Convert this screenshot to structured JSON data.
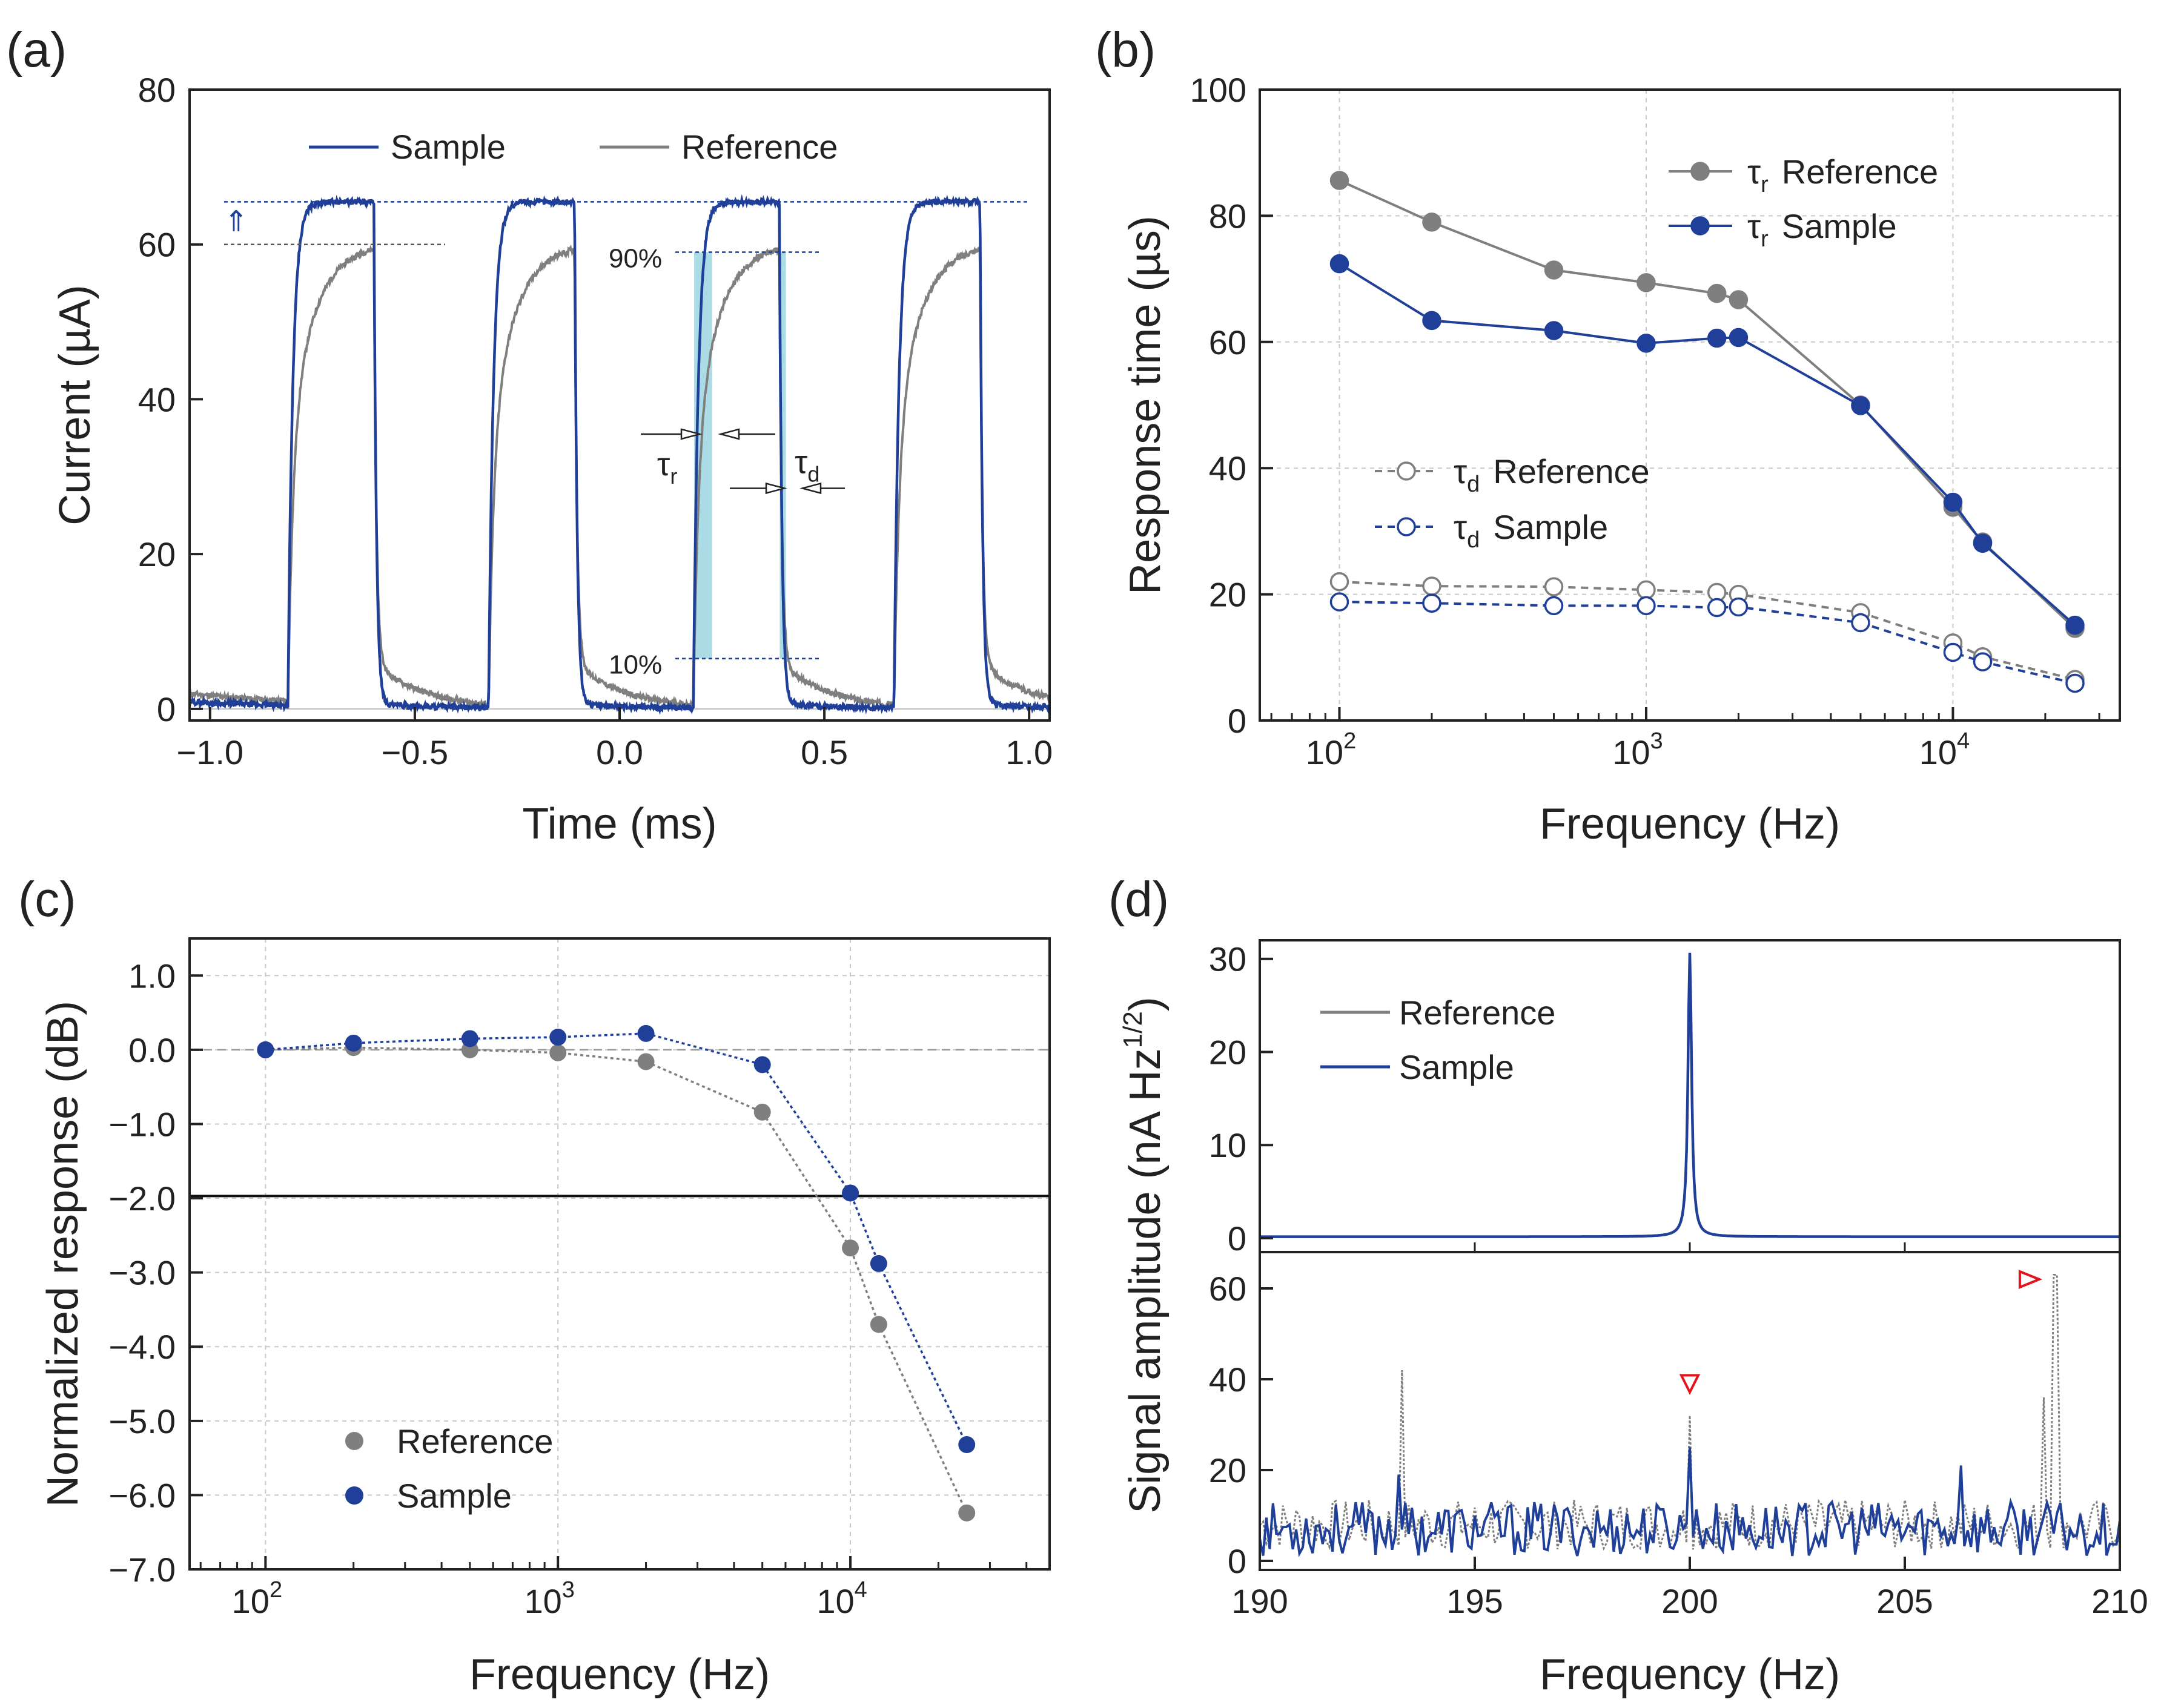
{
  "chart_data": [
    {
      "panel": "(a)",
      "type": "line",
      "xlabel": "Time (ms)",
      "ylabel_main": "Current (",
      "ylabel_mu": "µ",
      "ylabel_tail": "A)",
      "xlim": [
        -1.05,
        1.05
      ],
      "ylim": [
        -1.5,
        80
      ],
      "xticks": [
        -1.0,
        -0.5,
        0.0,
        0.5,
        1.0
      ],
      "xtick_labels": [
        "−1.0",
        "−0.5",
        "0.0",
        "0.5",
        "1.0"
      ],
      "yticks": [
        0,
        20,
        40,
        60,
        80
      ],
      "ytick_labels": [
        "0",
        "20",
        "40",
        "60",
        "80"
      ],
      "legend_position": "top",
      "series": [
        {
          "name": "Sample",
          "color": "#1f3f99",
          "high": 65.5,
          "low": 0,
          "tau_rise_ms": 0.012,
          "tau_fall_ms": 0.006
        },
        {
          "name": "Reference",
          "color": "#7f7f7f",
          "high": 60.2,
          "low": 0,
          "tau_rise_ms": 0.03,
          "tau_fall_ms": 0.025
        }
      ],
      "pulse_on_ms": [
        -0.81,
        -0.32,
        0.18,
        0.67
      ],
      "pulse_off_ms": [
        -0.6,
        -0.11,
        0.39,
        0.88
      ],
      "annotations": {
        "p90": "90%",
        "p10": "10%",
        "tau_r": "τ",
        "tau_r_sub": "r",
        "tau_d": "τ",
        "tau_d_sub": "d",
        "up_arrow": "⇑",
        "sample_level": 65.5,
        "reference_level": 60,
        "ninety_level": 59,
        "ten_level": 6.5
      }
    },
    {
      "panel": "(b)",
      "type": "line",
      "xlabel": "Frequency (Hz)",
      "ylabel": "Response time (µs)",
      "xscale": "log",
      "xlim": [
        55,
        35000
      ],
      "ylim": [
        0,
        100
      ],
      "yticks": [
        0,
        20,
        40,
        60,
        80,
        100
      ],
      "ytick_labels": [
        "0",
        "20",
        "40",
        "60",
        "80",
        "100"
      ],
      "xticks": [
        100,
        1000,
        10000
      ],
      "xtick_base": "10",
      "xtick_exp": [
        "2",
        "3",
        "4"
      ],
      "legend_position": "top-right and middle-left",
      "x": [
        100,
        200,
        500,
        1000,
        1700,
        2000,
        5000,
        10000,
        12500,
        25000
      ],
      "series": [
        {
          "name": "Reference",
          "symbol": "τ",
          "sub": "r",
          "color": "#7f7f7f",
          "marker": "filled",
          "style": "solid",
          "values": [
            85.6,
            79.0,
            71.4,
            69.4,
            67.7,
            66.7,
            50.0,
            33.8,
            28.3,
            14.6
          ]
        },
        {
          "name": "Sample",
          "symbol": "τ",
          "sub": "r",
          "color": "#1f3f99",
          "marker": "filled",
          "style": "solid",
          "values": [
            72.4,
            63.4,
            61.8,
            59.8,
            60.6,
            60.7,
            49.9,
            34.6,
            28.1,
            15.1
          ]
        },
        {
          "name": "Reference",
          "symbol": "τ",
          "sub": "d",
          "color": "#7f7f7f",
          "marker": "open",
          "style": "dashed",
          "values": [
            22.0,
            21.3,
            21.2,
            20.7,
            20.3,
            20.0,
            17.1,
            12.3,
            10.1,
            6.5
          ]
        },
        {
          "name": "Sample",
          "symbol": "τ",
          "sub": "d",
          "color": "#1f3f99",
          "marker": "open",
          "style": "dashed",
          "values": [
            18.8,
            18.6,
            18.2,
            18.2,
            17.9,
            18.0,
            15.5,
            10.8,
            9.3,
            5.9
          ]
        }
      ]
    },
    {
      "panel": "(c)",
      "type": "line",
      "xlabel": "Frequency (Hz)",
      "ylabel": "Normalized response (dB)",
      "xscale": "log",
      "xlim": [
        55,
        48000
      ],
      "ylim": [
        -7.0,
        1.5
      ],
      "yticks": [
        1.0,
        0.0,
        -1.0,
        -2.0,
        -3.0,
        -4.0,
        -5.0,
        -6.0,
        -7.0
      ],
      "ytick_labels": [
        "1.0",
        "0.0",
        "−1.0",
        "−2.0",
        "−3.0",
        "−4.0",
        "−5.0",
        "−6.0",
        "−7.0"
      ],
      "xticks": [
        100,
        1000,
        10000
      ],
      "xtick_base": "10",
      "xtick_exp": [
        "2",
        "3",
        "4"
      ],
      "threshold_db": -1.97,
      "legend_position": "bottom-left",
      "x": [
        100,
        200,
        500,
        1000,
        2000,
        5000,
        10000,
        12500,
        25000
      ],
      "series": [
        {
          "name": "Reference",
          "color": "#7f7f7f",
          "values": [
            0.0,
            0.03,
            0.0,
            -0.04,
            -0.16,
            -0.84,
            -2.67,
            -3.7,
            -6.24
          ]
        },
        {
          "name": "Sample",
          "color": "#1f3f99",
          "values": [
            0.0,
            0.09,
            0.15,
            0.17,
            0.22,
            -0.2,
            -1.93,
            -2.88,
            -5.32
          ]
        }
      ]
    },
    {
      "panel": "(d)",
      "type": "line",
      "xlabel": "Frequency (Hz)",
      "ylabel_main": "Signal amplitude (nA Hz",
      "ylabel_sup": "1/2",
      "ylabel_tail": ")",
      "xlim": [
        190,
        210
      ],
      "xticks": [
        190,
        195,
        200,
        205,
        210
      ],
      "xtick_labels": [
        "190",
        "195",
        "200",
        "205",
        "210"
      ],
      "top_ylim": [
        -1.5,
        32
      ],
      "top_yticks": [
        0,
        10,
        20,
        30
      ],
      "top_ytick_labels": [
        "0",
        "10",
        "20",
        "30"
      ],
      "bottom_ylim": [
        -2,
        68
      ],
      "bottom_yticks": [
        0,
        20,
        40,
        60
      ],
      "bottom_ytick_labels": [
        "0",
        "20",
        "40",
        "60"
      ],
      "legend_position": "top-left",
      "series": [
        {
          "name": "Reference",
          "color": "#7f7f7f",
          "peak_hz": 200,
          "peak_top": 30.0
        },
        {
          "name": "Sample",
          "color": "#1f3f99",
          "peak_hz": 200,
          "peak_top": 30.5
        }
      ],
      "noise_peaks_reference": [
        {
          "hz": 193.3,
          "value": 42
        },
        {
          "hz": 200.0,
          "value": 32
        },
        {
          "hz": 208.5,
          "value": 63
        },
        {
          "hz": 208.2,
          "value": 36
        }
      ],
      "noise_peaks_sample": [
        {
          "hz": 200.0,
          "value": 25
        },
        {
          "hz": 206.3,
          "value": 21
        },
        {
          "hz": 193.2,
          "value": 19
        }
      ],
      "markers": [
        {
          "hz": 200.0,
          "value": 39,
          "direction": "down",
          "color": "#e3131b"
        },
        {
          "hz": 207.9,
          "value": 62,
          "direction": "right",
          "color": "#e3131b"
        }
      ]
    }
  ]
}
